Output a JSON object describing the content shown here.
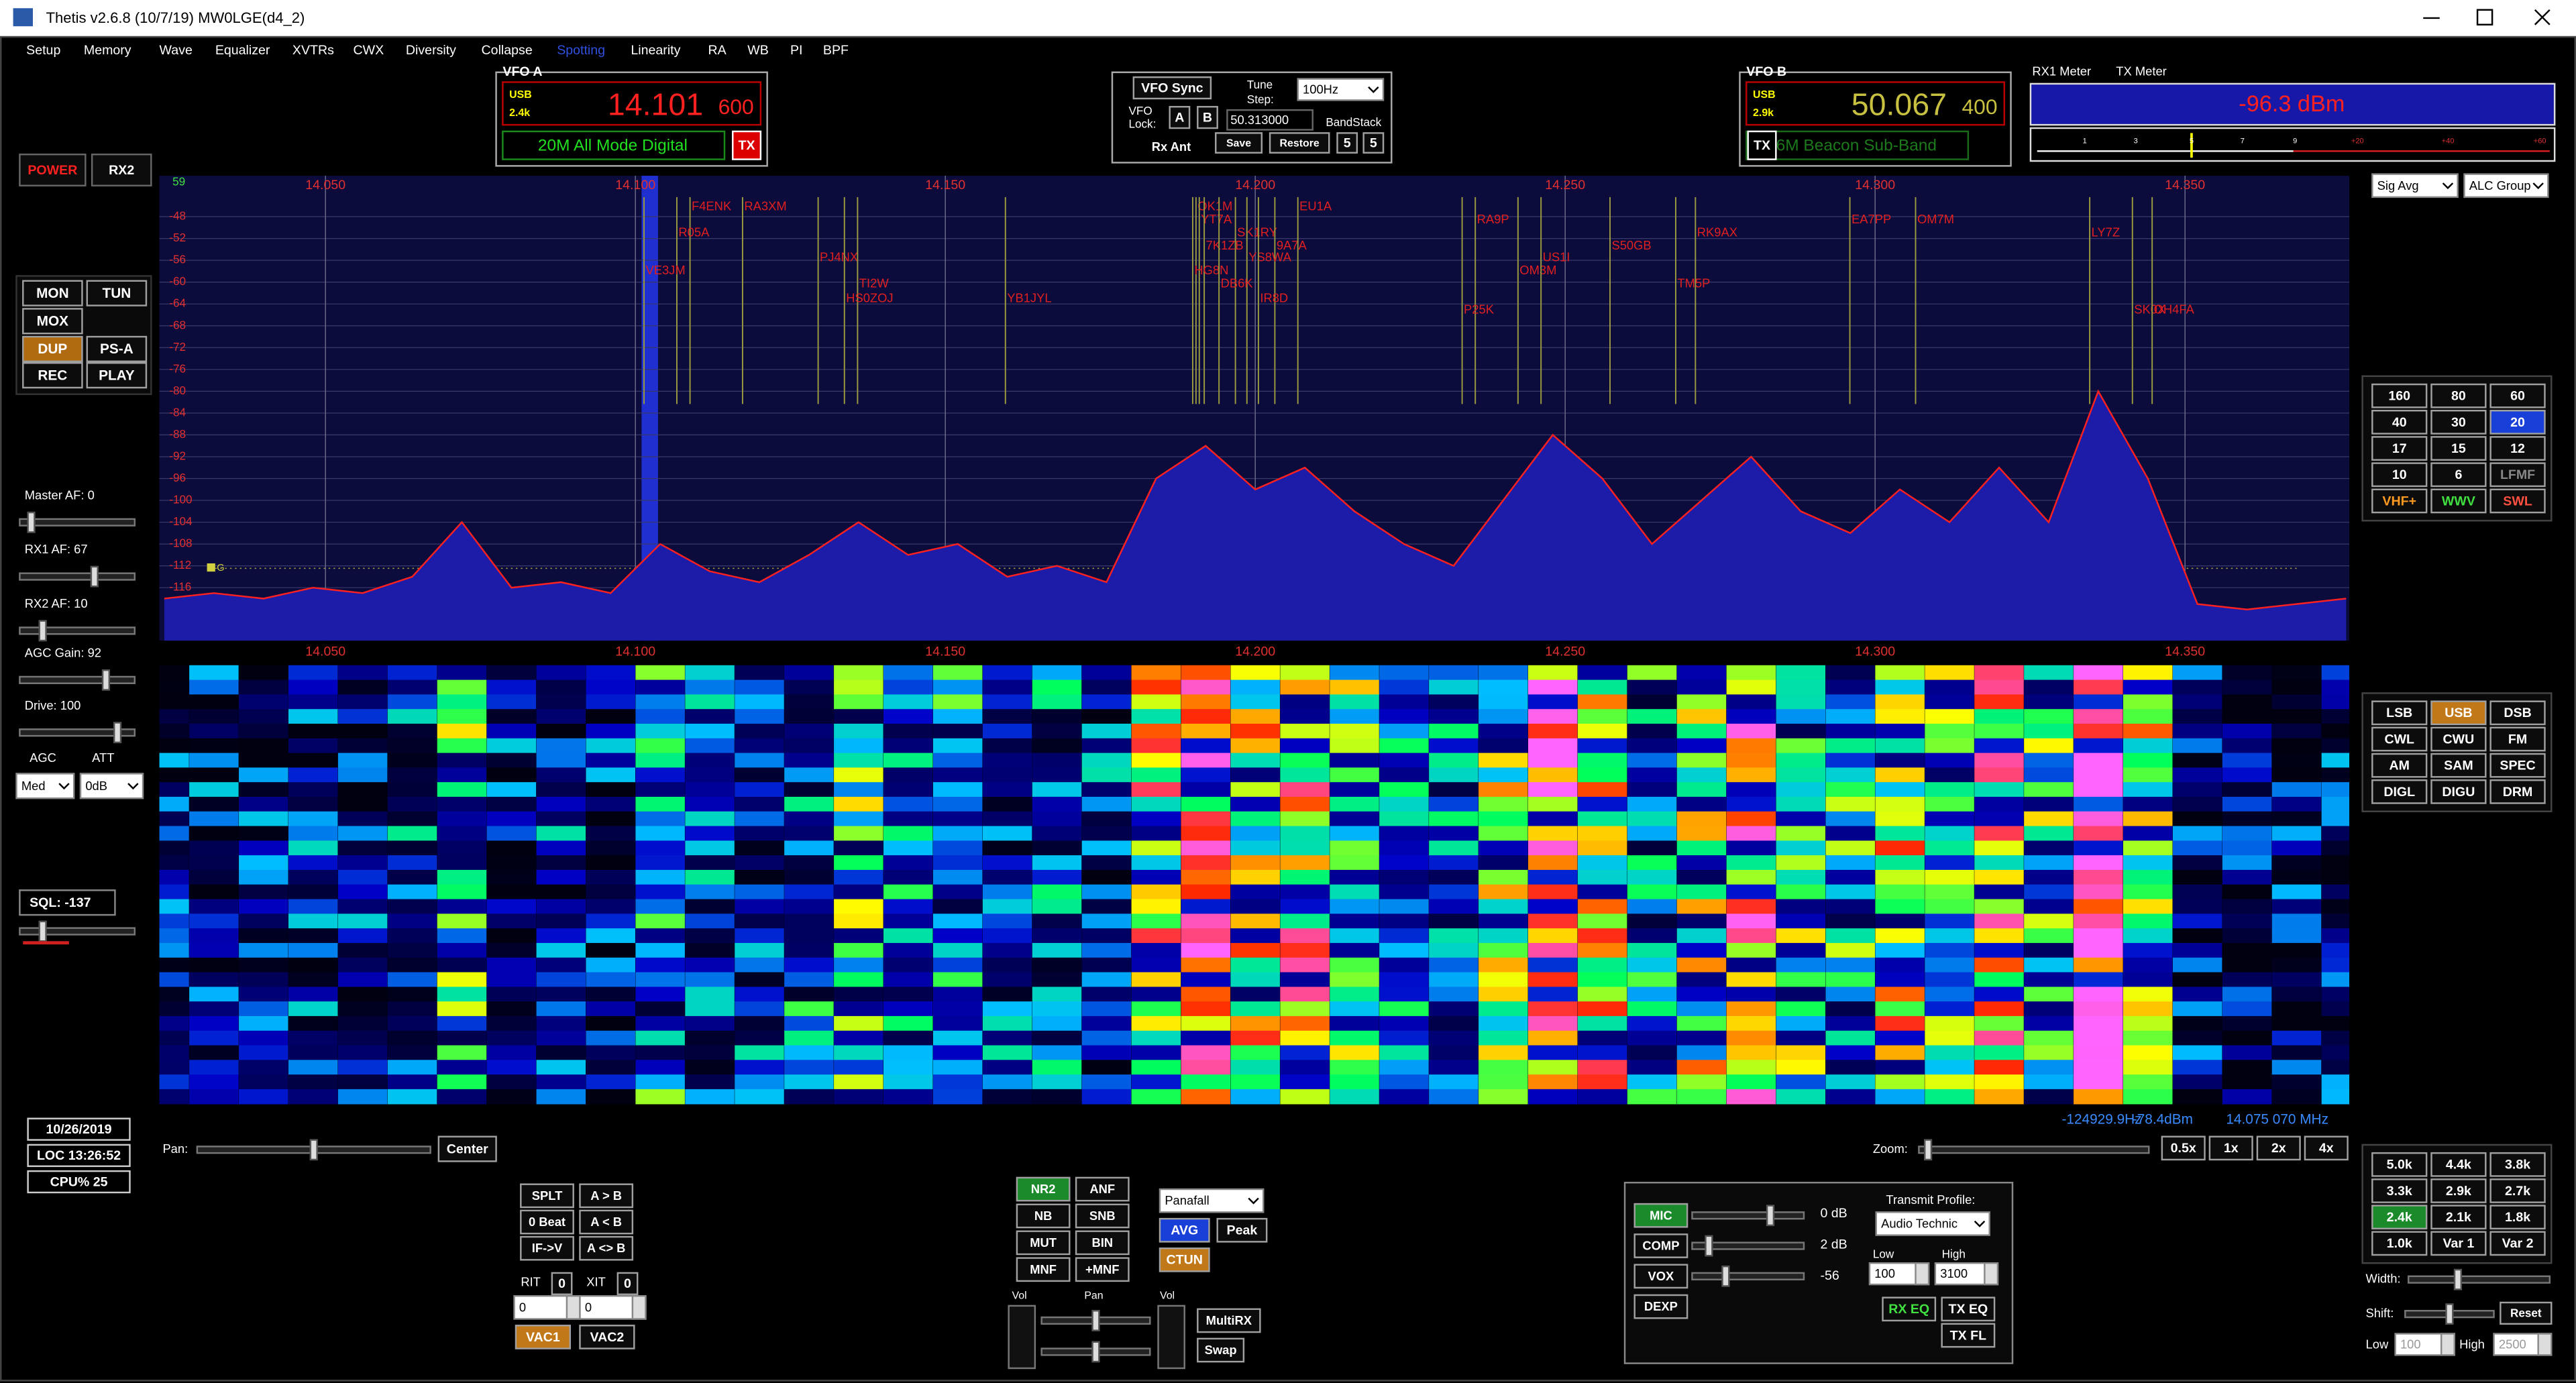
{
  "window": {
    "title": "Thetis v2.6.8 (10/7/19) MW0LGE(d4_2)"
  },
  "menu": [
    "Setup",
    "Memory",
    "Wave",
    "Equalizer",
    "XVTRs",
    "CWX",
    "Diversity",
    "Collapse",
    "Spotting",
    "Linearity",
    "RA",
    "WB",
    "PI",
    "BPF"
  ],
  "vfo_a": {
    "label": "VFO A",
    "mode": "USB",
    "filter": "2.4k",
    "freq": "14.101",
    "freq_sub": "600",
    "band": "20M All Mode Digital",
    "tx": "TX"
  },
  "vfo_b": {
    "label": "VFO B",
    "mode": "USB",
    "filter": "2.9k",
    "freq": "50.067",
    "freq_sub": "400",
    "band": "6M Beacon Sub-Band",
    "tx": "TX"
  },
  "vfo_center": {
    "sync": "VFO Sync",
    "lock": "VFO",
    "lock2": "Lock:",
    "a": "A",
    "b": "B",
    "tune": "Tune",
    "step": "Step:",
    "tune_step": "100Hz",
    "freq": "50.313000",
    "bandstack": "BandStack",
    "save": "Save",
    "restore": "Restore",
    "bs1": "5",
    "bs2": "5",
    "rx_ant": "Rx Ant"
  },
  "meters": {
    "rx1": "RX1 Meter",
    "tx": "TX Meter",
    "reading": "-96.3 dBm",
    "scale": [
      "1",
      "3",
      "5",
      "7",
      "9",
      "+20",
      "+40",
      "+60"
    ],
    "sig_avg": "Sig Avg",
    "alc": "ALC Group"
  },
  "left": {
    "power": "POWER",
    "rx2": "RX2",
    "buttons": [
      "MON",
      "TUN",
      "MOX",
      "DUP",
      "PS-A",
      "REC",
      "PLAY"
    ],
    "sliders": [
      "Master AF:  0",
      "RX1 AF:  67",
      "RX2 AF:  10",
      "AGC Gain:  92",
      "Drive:  100"
    ],
    "agc": "AGC",
    "att": "ATT",
    "agc_value": "Med",
    "att_value": "0dB",
    "sql": "SQL: -137",
    "date": "10/26/2019",
    "time": "LOC 13:26:52",
    "cpu": "CPU%  25"
  },
  "bands": [
    "160",
    "80",
    "60",
    "40",
    "30",
    "20",
    "17",
    "15",
    "12",
    "10",
    "6",
    "LFMF",
    "VHF+",
    "WWV",
    "SWL"
  ],
  "modes": [
    "LSB",
    "USB",
    "DSB",
    "CWL",
    "CWU",
    "FM",
    "AM",
    "SAM",
    "SPEC",
    "DIGL",
    "DIGU",
    "DRM"
  ],
  "filters": {
    "buttons": [
      "5.0k",
      "4.4k",
      "3.8k",
      "3.3k",
      "2.9k",
      "2.7k",
      "2.4k",
      "2.1k",
      "1.8k",
      "1.0k",
      "Var 1",
      "Var 2"
    ],
    "width": "Width:",
    "shift": "Shift:",
    "reset": "Reset",
    "low": "Low",
    "low_value": "100",
    "high": "High",
    "high_value": "2500"
  },
  "display": {
    "s_label": "59",
    "marker": "G",
    "pan": "Pan:",
    "center": "Center",
    "zoom": "Zoom:",
    "zooms": [
      "0.5x",
      "1x",
      "2x",
      "4x"
    ],
    "cursor_offset": "-124929.9Hz",
    "cursor_level": "-78.4dBm",
    "cursor_freq": "14.075 070 MHz"
  },
  "spots": [
    "F4ENK",
    "RA3XM",
    "R05A",
    "VE3JM",
    "PJ4NX",
    "TI2W",
    "HS0ZOJ",
    "YB1JYL",
    "OK1M",
    "YT7A",
    "SK1RY",
    "9A7A",
    "7K1ZB",
    "YS8WA",
    "HG8N",
    "DB6K",
    "IR8D",
    "EU1A",
    "RA9P",
    "P25K",
    "OM3M",
    "US1I",
    "S50GB",
    "RK9AX",
    "TM5P",
    "EA7PP",
    "OM7M",
    "LY7Z",
    "SK0X",
    "OH4FA"
  ],
  "vfo_ops": {
    "buttons": [
      "SPLT",
      "A > B",
      "0 Beat",
      "A < B",
      "IF->V",
      "A <> B"
    ],
    "rit": "RIT",
    "rit_value": "0",
    "xit": "XIT",
    "xit_value": "0",
    "rit_spin": "0",
    "xit_spin": "0",
    "vac1": "VAC1",
    "vac2": "VAC2"
  },
  "dsp": {
    "buttons": [
      "NR2",
      "ANF",
      "NB",
      "SNB",
      "MUT",
      "BIN",
      "MNF",
      "+MNF"
    ],
    "display_mode": "Panafall",
    "avg": "AVG",
    "peak": "Peak",
    "ctun": "CTUN",
    "vol": "Vol",
    "pan": "Pan",
    "vol2": "Vol",
    "multirx": "MultiRX",
    "swap": "Swap"
  },
  "tx": {
    "buttons": [
      "MIC",
      "COMP",
      "VOX",
      "DEXP"
    ],
    "levels": [
      "0 dB",
      "2 dB",
      "-56"
    ],
    "profile_label": "Transmit Profile:",
    "profile": "Audio Technic",
    "low": "Low",
    "high": "High",
    "low_value": "100",
    "high_value": "3100",
    "rx_eq": "RX EQ",
    "tx_eq": "TX EQ",
    "tx_fl": "TX FL"
  },
  "chart_data": {
    "type": "line",
    "color": "#ff2020",
    "x": [
      14.024,
      14.032,
      14.04,
      14.048,
      14.056,
      14.064,
      14.072,
      14.08,
      14.088,
      14.096,
      14.104,
      14.112,
      14.12,
      14.128,
      14.136,
      14.144,
      14.152,
      14.16,
      14.168,
      14.176,
      14.184,
      14.192,
      14.2,
      14.208,
      14.216,
      14.224,
      14.232,
      14.24,
      14.248,
      14.256,
      14.264,
      14.272,
      14.28,
      14.288,
      14.296,
      14.304,
      14.312,
      14.32,
      14.328,
      14.336,
      14.344,
      14.352,
      14.36,
      14.368,
      14.376
    ],
    "values": [
      -118,
      -117,
      -118,
      -116,
      -117,
      -114,
      -104,
      -116,
      -115,
      -117,
      -108,
      -113,
      -115,
      -110,
      -104,
      -110,
      -108,
      -114,
      -112,
      -115,
      -96,
      -90,
      -98,
      -94,
      -102,
      -108,
      -112,
      -100,
      -88,
      -96,
      -108,
      -100,
      -92,
      -102,
      -106,
      -98,
      -104,
      -94,
      -104,
      -80,
      -96,
      -119,
      -120,
      -119,
      -118
    ],
    "xlim": [
      14.0232,
      14.3765
    ],
    "ylim": [
      -125.7,
      -40.5
    ],
    "xticks": [
      {
        "value": 14.05,
        "label": "14.050"
      },
      {
        "value": 14.1,
        "label": "14.100"
      },
      {
        "value": 14.15,
        "label": "14.150"
      },
      {
        "value": 14.2,
        "label": "14.200"
      },
      {
        "value": 14.25,
        "label": "14.250"
      },
      {
        "value": 14.3,
        "label": "14.300"
      },
      {
        "value": 14.35,
        "label": "14.350"
      }
    ],
    "yticks": [
      -48,
      -52,
      -56,
      -60,
      -64,
      -68,
      -72,
      -76,
      -80,
      -84,
      -88,
      -92,
      -96,
      -100,
      -104,
      -108,
      -112,
      -116
    ],
    "grid": true
  }
}
